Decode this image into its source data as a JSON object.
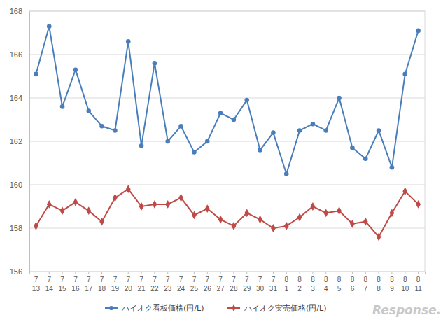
{
  "chart_data": {
    "type": "line",
    "categories": [
      "7\n13",
      "7\n14",
      "7\n15",
      "7\n16",
      "7\n17",
      "7\n18",
      "7\n19",
      "7\n20",
      "7\n21",
      "7\n22",
      "7\n23",
      "7\n24",
      "7\n25",
      "7\n26",
      "7\n27",
      "7\n28",
      "7\n29",
      "7\n30",
      "7\n31",
      "8\n1",
      "8\n2",
      "8\n3",
      "8\n4",
      "8\n5",
      "8\n6",
      "8\n7",
      "8\n8",
      "8\n9",
      "8\n10",
      "8\n11"
    ],
    "series": [
      {
        "name": "ハイオク看板価格(円/L)",
        "color": "#4a7ebb",
        "marker": "circle",
        "values": [
          165.1,
          167.3,
          163.6,
          165.3,
          163.4,
          162.7,
          162.5,
          166.6,
          161.8,
          165.6,
          162.0,
          162.7,
          161.5,
          162.0,
          163.3,
          163.0,
          163.9,
          161.6,
          162.4,
          160.5,
          162.5,
          162.8,
          162.5,
          164.0,
          161.7,
          161.2,
          162.5,
          160.8,
          165.1,
          167.1
        ]
      },
      {
        "name": "ハイオク実売価格(円/L)",
        "color": "#be4b48",
        "marker": "diamond",
        "values": [
          158.1,
          159.1,
          158.8,
          159.2,
          158.8,
          158.3,
          159.4,
          159.8,
          159.0,
          159.1,
          159.1,
          159.4,
          158.6,
          158.9,
          158.4,
          158.1,
          158.7,
          158.4,
          158.0,
          158.1,
          158.5,
          159.0,
          158.7,
          158.8,
          158.2,
          158.3,
          157.6,
          158.7,
          159.7,
          159.1
        ]
      }
    ],
    "ylim": [
      156,
      168
    ],
    "yticks": [
      156,
      158,
      160,
      162,
      164,
      166,
      168
    ],
    "grid": true,
    "legend": "bottom",
    "annotations": [
      "Response."
    ]
  }
}
